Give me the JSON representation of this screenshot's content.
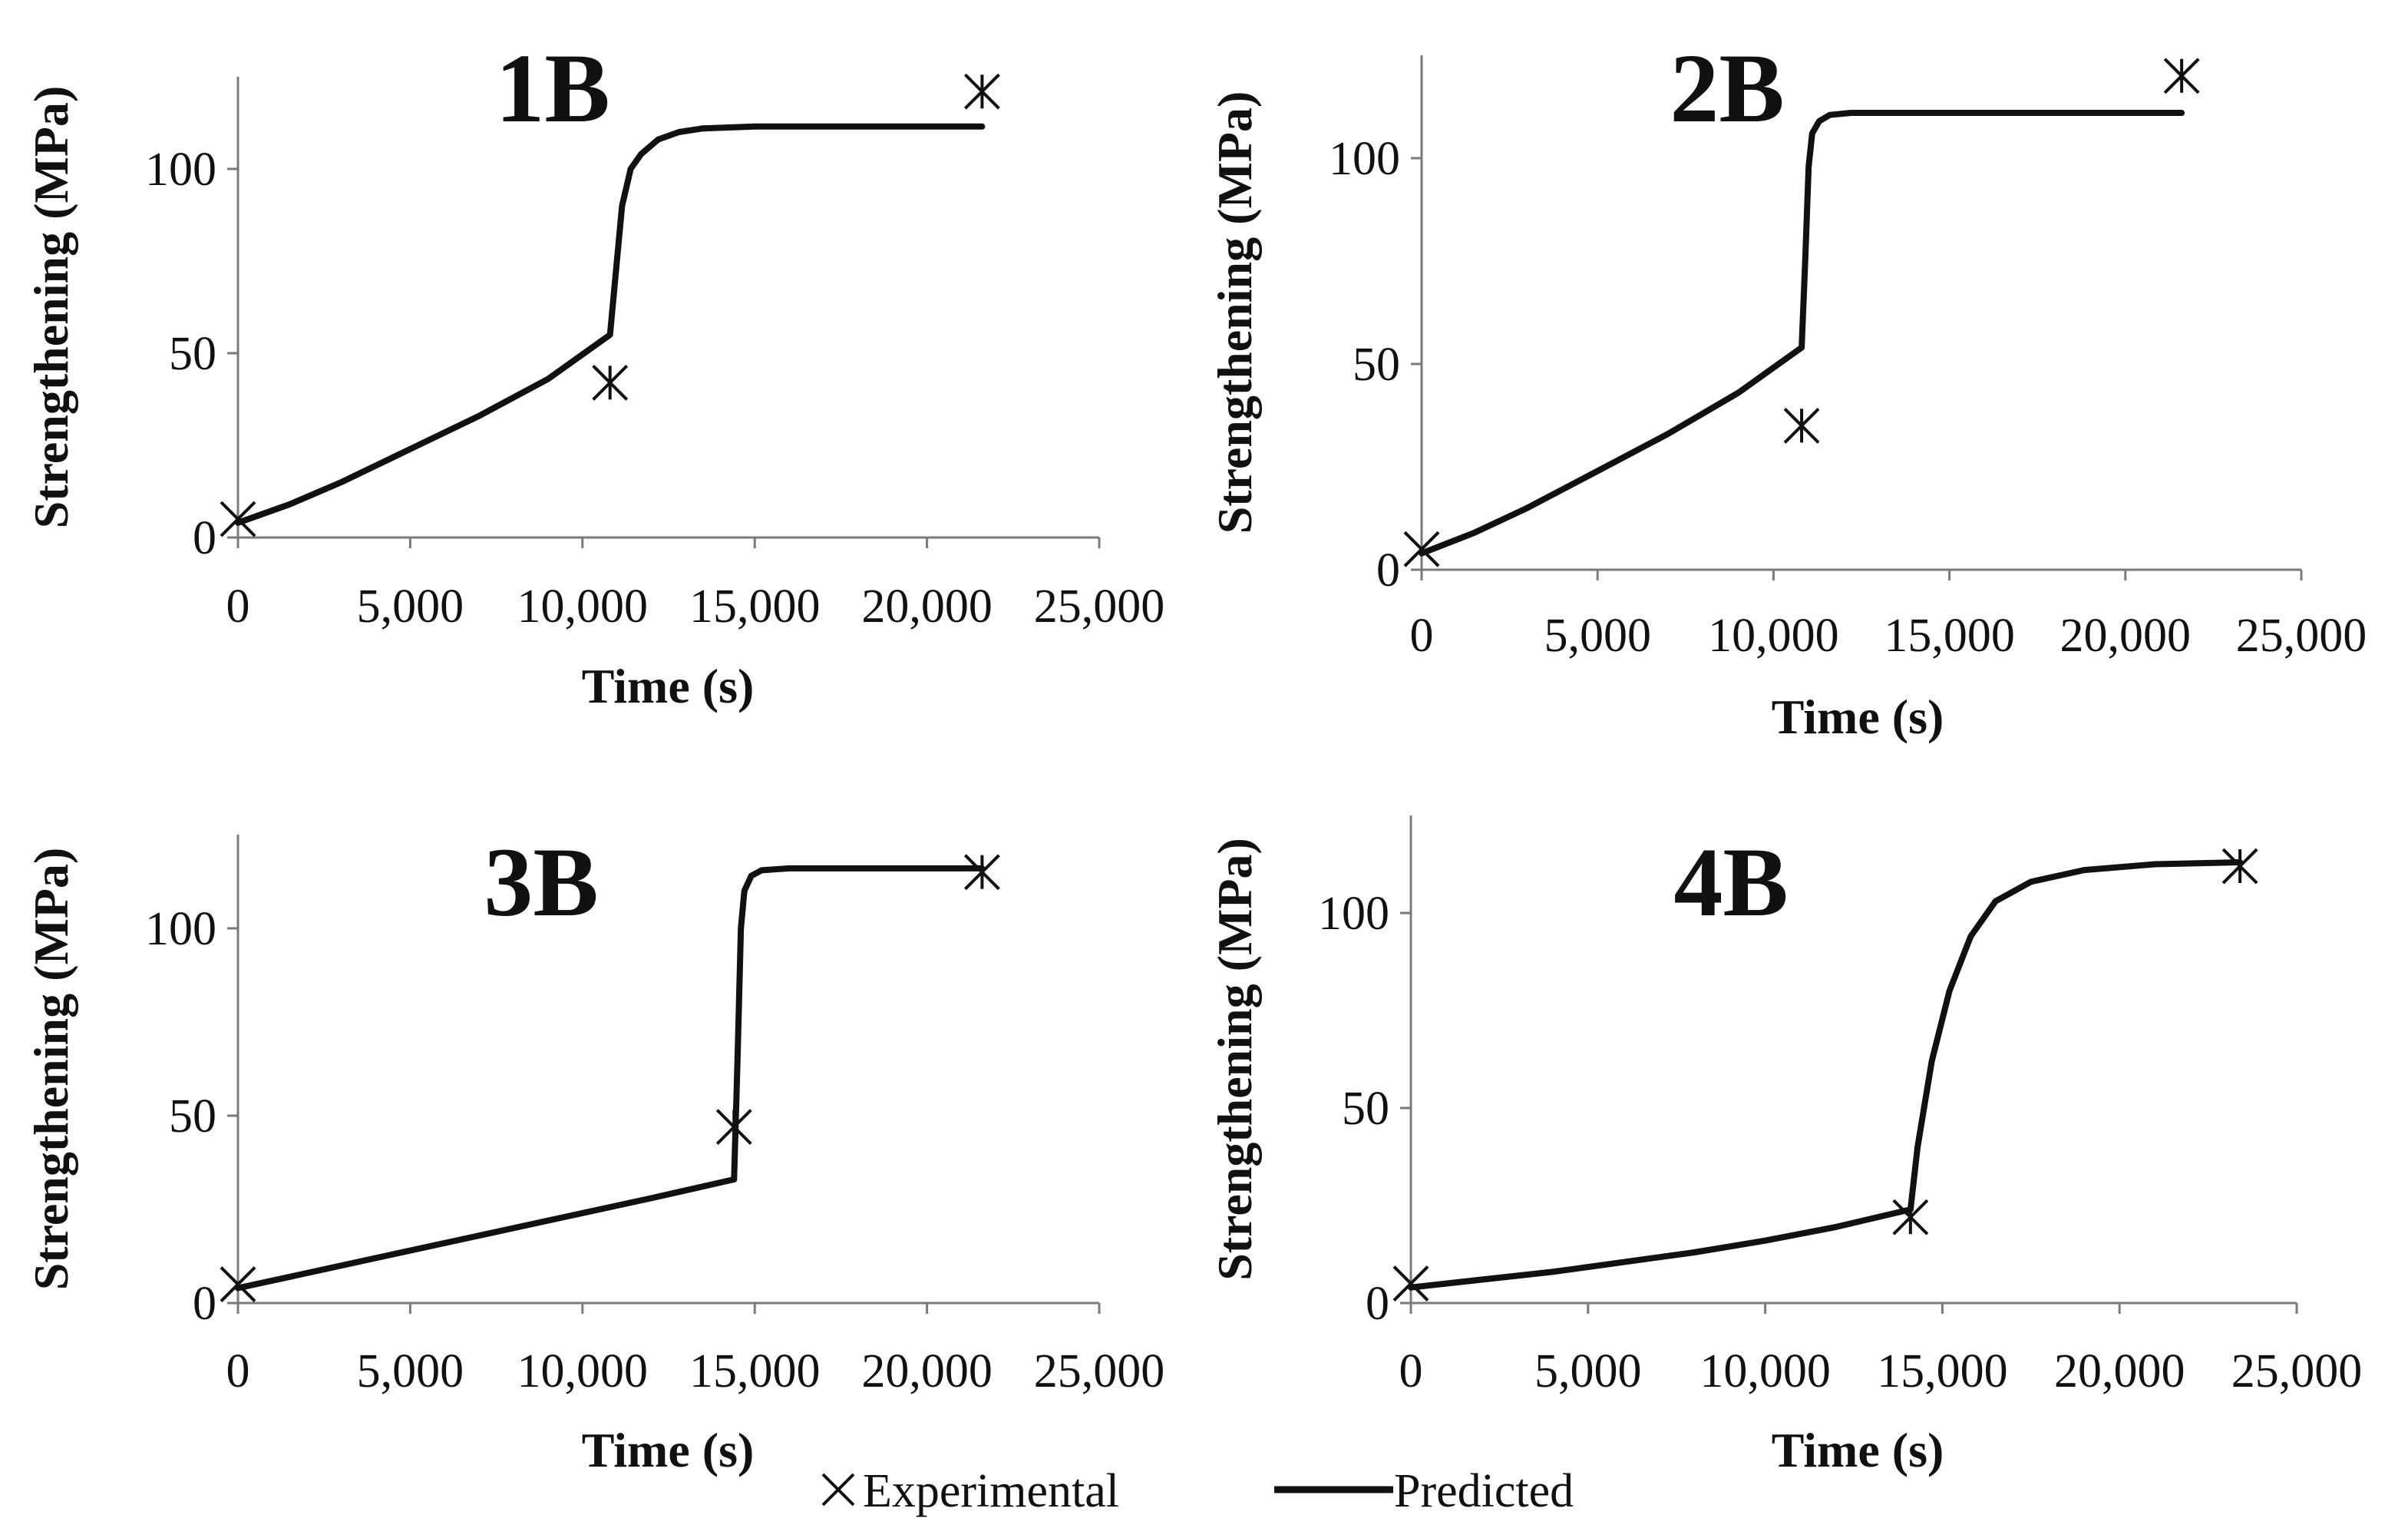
{
  "legend": {
    "experimental_label": "Experimental",
    "predicted_label": "Predicted"
  },
  "chart_data": [
    {
      "type": "line",
      "title": "1B",
      "xlabel": "Time (s)",
      "ylabel": "Strengthening (MPa)",
      "xlim": [
        0,
        25000
      ],
      "ylim": [
        0,
        125
      ],
      "xticks": [
        0,
        5000,
        10000,
        15000,
        20000,
        25000
      ],
      "xtick_labels": [
        "0",
        "5,000",
        "10,000",
        "15,000",
        "20,000",
        "25,000"
      ],
      "yticks": [
        0,
        50,
        100
      ],
      "ytick_labels": [
        "0",
        "50",
        "100"
      ],
      "series": [
        {
          "name": "Predicted",
          "x": [
            0,
            1500,
            3000,
            5000,
            7000,
            9000,
            10800,
            10950,
            11150,
            11400,
            11700,
            12200,
            12800,
            13500,
            15000,
            18000,
            21600
          ],
          "y": [
            4,
            9,
            15,
            24,
            33,
            43,
            55,
            70,
            90,
            100,
            104,
            108,
            110,
            111,
            111.5,
            111.5,
            111.5
          ]
        },
        {
          "name": "Experimental",
          "x": [
            0,
            10800,
            21600
          ],
          "y": [
            5,
            42,
            121
          ]
        }
      ]
    },
    {
      "type": "line",
      "title": "2B",
      "xlabel": "Time (s)",
      "ylabel": "Strengthening (MPa)",
      "xlim": [
        0,
        25000
      ],
      "ylim": [
        0,
        125
      ],
      "xticks": [
        0,
        5000,
        10000,
        15000,
        20000,
        25000
      ],
      "xtick_labels": [
        "0",
        "5,000",
        "10,000",
        "15,000",
        "20,000",
        "25,000"
      ],
      "yticks": [
        0,
        50,
        100
      ],
      "ytick_labels": [
        "0",
        "50",
        "100"
      ],
      "series": [
        {
          "name": "Predicted",
          "x": [
            0,
            1500,
            3000,
            5000,
            7000,
            9000,
            10800,
            10900,
            11000,
            11100,
            11300,
            11600,
            12200,
            15000,
            21600
          ],
          "y": [
            4,
            9,
            15,
            24,
            33,
            43,
            54,
            75,
            98,
            106,
            109,
            110.5,
            111,
            111,
            111
          ]
        },
        {
          "name": "Experimental",
          "x": [
            0,
            10800,
            21600
          ],
          "y": [
            5,
            35,
            120
          ]
        }
      ]
    },
    {
      "type": "line",
      "title": "3B",
      "xlabel": "Time (s)",
      "ylabel": "Strengthening (MPa)",
      "xlim": [
        0,
        25000
      ],
      "ylim": [
        0,
        125
      ],
      "xticks": [
        0,
        5000,
        10000,
        15000,
        20000,
        25000
      ],
      "xtick_labels": [
        "0",
        "5,000",
        "10,000",
        "15,000",
        "20,000",
        "25,000"
      ],
      "yticks": [
        0,
        50,
        100
      ],
      "ytick_labels": [
        "0",
        "50",
        "100"
      ],
      "series": [
        {
          "name": "Predicted",
          "x": [
            0,
            2000,
            4000,
            6000,
            8000,
            10000,
            12000,
            14400,
            14500,
            14600,
            14700,
            14900,
            15200,
            16000,
            21600
          ],
          "y": [
            4,
            8,
            12,
            16,
            20,
            24,
            28,
            33,
            65,
            100,
            110,
            114,
            115.5,
            116,
            116
          ]
        },
        {
          "name": "Experimental",
          "x": [
            0,
            14400,
            21600
          ],
          "y": [
            5,
            47,
            115
          ]
        }
      ]
    },
    {
      "type": "line",
      "title": "4B",
      "xlabel": "Time (s)",
      "ylabel": "Strengthening (MPa)",
      "xlim": [
        0,
        25000
      ],
      "ylim": [
        0,
        125
      ],
      "xticks": [
        0,
        5000,
        10000,
        15000,
        20000,
        25000
      ],
      "xtick_labels": [
        "0",
        "5,000",
        "10,000",
        "15,000",
        "20,000",
        "25,000"
      ],
      "yticks": [
        0,
        50,
        100
      ],
      "ytick_labels": [
        "0",
        "50",
        "100"
      ],
      "series": [
        {
          "name": "Predicted",
          "x": [
            0,
            2000,
            4000,
            6000,
            8000,
            10000,
            12000,
            14100,
            14300,
            14700,
            15200,
            15800,
            16500,
            17500,
            19000,
            21000,
            23400
          ],
          "y": [
            4,
            6,
            8,
            10.5,
            13,
            16,
            19.5,
            24,
            40,
            62,
            80,
            94,
            103,
            108,
            111,
            112.5,
            113
          ]
        },
        {
          "name": "Experimental",
          "x": [
            0,
            14100,
            23400
          ],
          "y": [
            5,
            22,
            112
          ]
        }
      ]
    }
  ]
}
